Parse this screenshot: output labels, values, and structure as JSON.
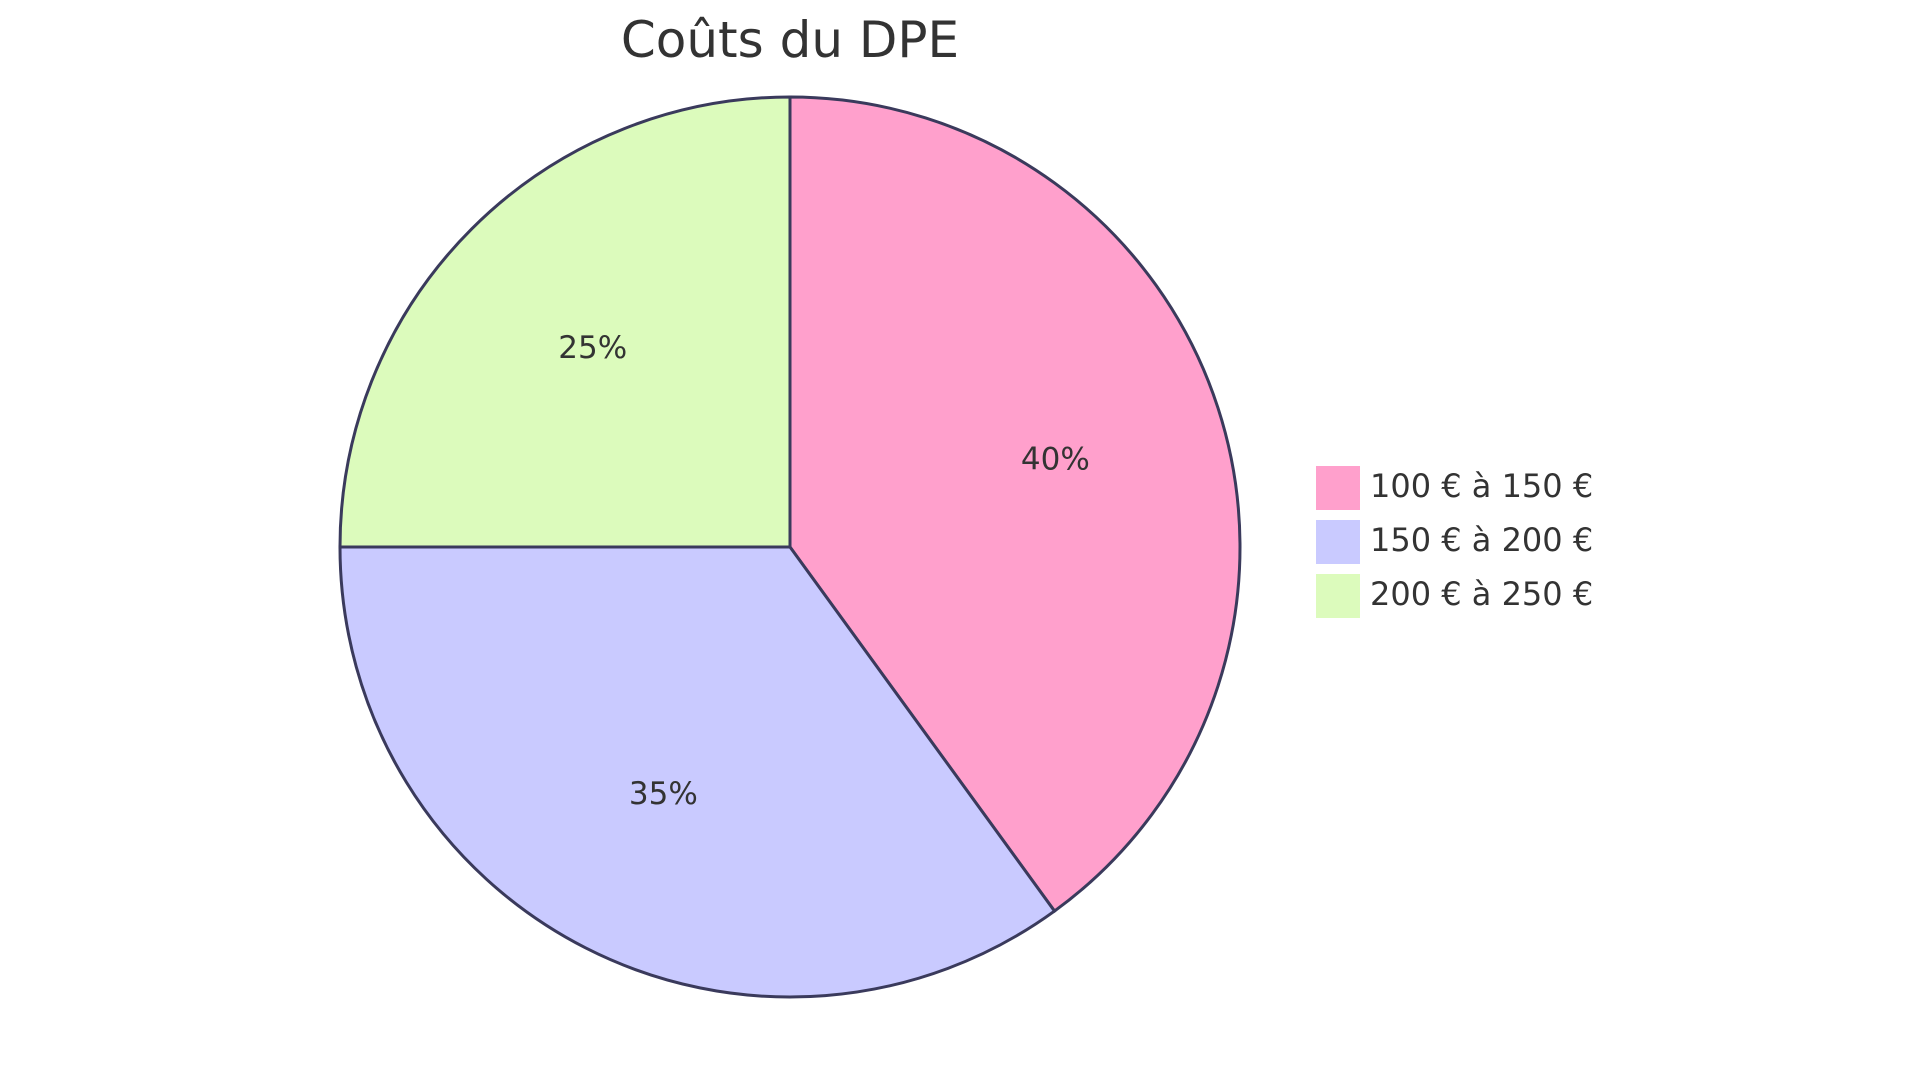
{
  "chart_data": {
    "type": "pie",
    "title": "Coûts du DPE",
    "slices": [
      {
        "label": "100 € à 150 €",
        "value": 40,
        "display": "40%",
        "color": "#ffa0cc"
      },
      {
        "label": "150 € à 200 €",
        "value": 35,
        "display": "35%",
        "color": "#c9caff"
      },
      {
        "label": "200 € à 250 €",
        "value": 25,
        "display": "25%",
        "color": "#dcfbbc"
      }
    ],
    "legend_position": "right",
    "stroke_color": "#3a3a5c"
  }
}
